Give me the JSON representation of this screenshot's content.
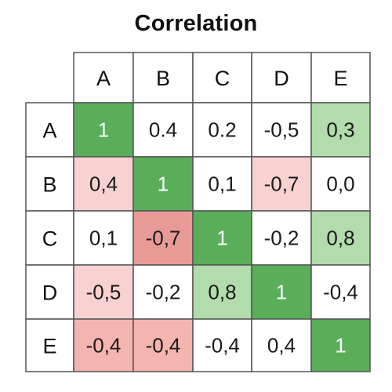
{
  "chart_data": {
    "type": "heatmap",
    "title": "Correlation",
    "x_labels": [
      "A",
      "B",
      "C",
      "D",
      "E"
    ],
    "y_labels": [
      "A",
      "B",
      "C",
      "D",
      "E"
    ],
    "values": [
      [
        1,
        0.4,
        0.2,
        -0.5,
        0.3
      ],
      [
        0.4,
        1,
        0.1,
        -0.7,
        0.0
      ],
      [
        0.1,
        -0.7,
        1,
        -0.2,
        0.8
      ],
      [
        -0.5,
        -0.2,
        0.8,
        1,
        -0.4
      ],
      [
        -0.4,
        -0.4,
        -0.4,
        0.4,
        1
      ]
    ],
    "value_labels": [
      [
        "1",
        "0.4",
        "0.2",
        "-0,5",
        "0,3"
      ],
      [
        "0,4",
        "1",
        "0,1",
        "-0,7",
        "0,0"
      ],
      [
        "0,1",
        "-0,7",
        "1",
        "-0,2",
        "0,8"
      ],
      [
        "-0,5",
        "-0,2",
        "0,8",
        "1",
        "-0,4"
      ],
      [
        "-0,4",
        "-0,4",
        "-0,4",
        "0,4",
        "1"
      ]
    ],
    "cell_colors": [
      [
        "#5aae5a",
        "#ffffff",
        "#ffffff",
        "#ffffff",
        "#b2dcab"
      ],
      [
        "#f8d2d0",
        "#5aae5a",
        "#ffffff",
        "#f8d2d0",
        "#ffffff"
      ],
      [
        "#ffffff",
        "#e89a96",
        "#5aae5a",
        "#ffffff",
        "#b2dcab"
      ],
      [
        "#f8d2d0",
        "#ffffff",
        "#b2dcab",
        "#5aae5a",
        "#ffffff"
      ],
      [
        "#f4b4b0",
        "#f4b4b0",
        "#ffffff",
        "#ffffff",
        "#5aae5a"
      ]
    ],
    "text_colors": [
      [
        "#ffffff",
        "#1a1a1a",
        "#1a1a1a",
        "#1a1a1a",
        "#1a1a1a"
      ],
      [
        "#1a1a1a",
        "#ffffff",
        "#1a1a1a",
        "#1a1a1a",
        "#1a1a1a"
      ],
      [
        "#1a1a1a",
        "#1a1a1a",
        "#ffffff",
        "#1a1a1a",
        "#1a1a1a"
      ],
      [
        "#1a1a1a",
        "#1a1a1a",
        "#1a1a1a",
        "#ffffff",
        "#1a1a1a"
      ],
      [
        "#1a1a1a",
        "#1a1a1a",
        "#1a1a1a",
        "#1a1a1a",
        "#ffffff"
      ]
    ],
    "border_color": "#555555",
    "legend": "none"
  }
}
